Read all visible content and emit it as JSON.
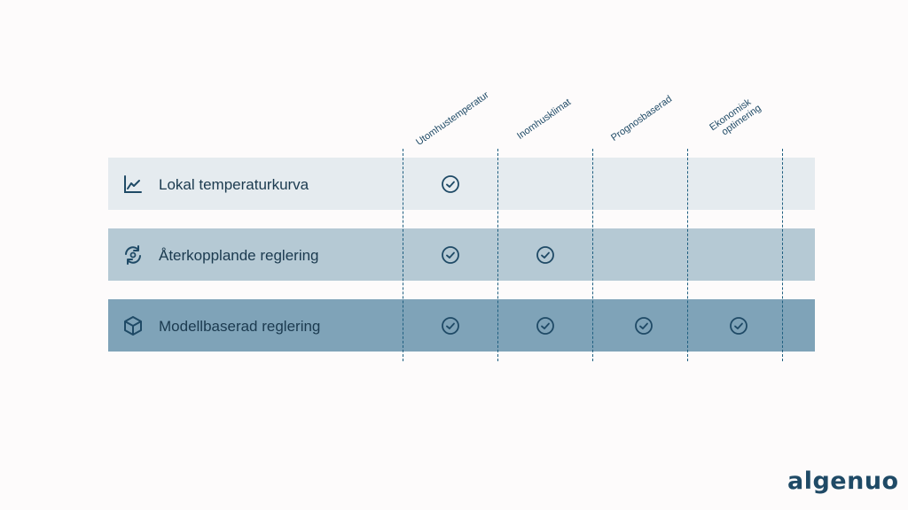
{
  "columns": [
    {
      "label": "Utomhustemperatur"
    },
    {
      "label": "Inomhusklimat"
    },
    {
      "label": "Prognosbaserad"
    },
    {
      "label_line1": "Ekonomisk",
      "label_line2": "optimering"
    }
  ],
  "rows": [
    {
      "label": "Lokal temperaturkurva",
      "icon": "line-chart-icon",
      "checks": [
        true,
        false,
        false,
        false
      ]
    },
    {
      "label": "Återkopplande reglering",
      "icon": "refresh-cycle-icon",
      "checks": [
        true,
        true,
        false,
        false
      ]
    },
    {
      "label": "Modellbaserad reglering",
      "icon": "cube-icon",
      "checks": [
        true,
        true,
        true,
        true
      ]
    }
  ],
  "logo": {
    "text": "algenuo"
  },
  "colors": {
    "row1": "#e5ebef",
    "row2": "#b5c9d4",
    "row3": "#7fa3b8",
    "accent": "#1f5f80"
  }
}
